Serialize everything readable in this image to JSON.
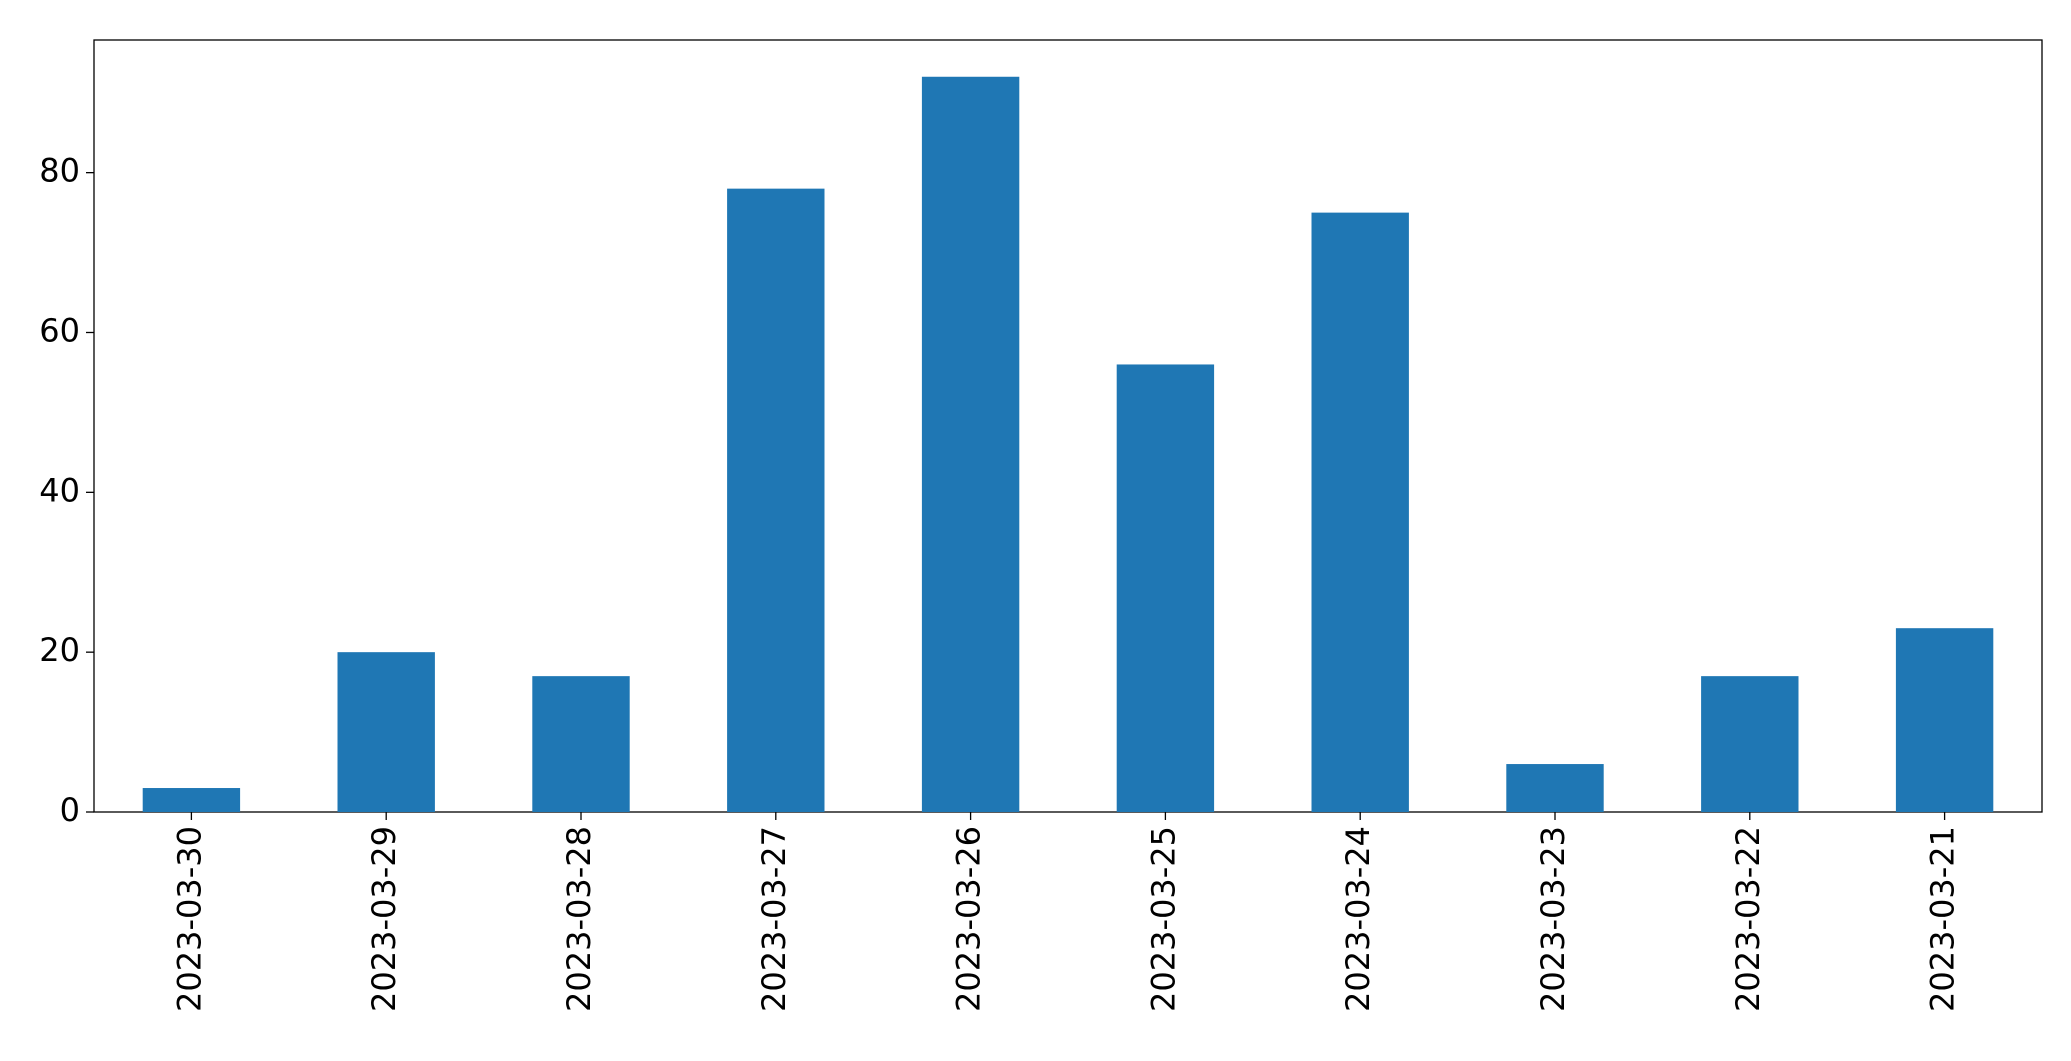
{
  "chart_data": {
    "type": "bar",
    "categories": [
      "2023-03-30",
      "2023-03-29",
      "2023-03-28",
      "2023-03-27",
      "2023-03-26",
      "2023-03-25",
      "2023-03-24",
      "2023-03-23",
      "2023-03-22",
      "2023-03-21"
    ],
    "values": [
      3,
      20,
      17,
      78,
      92,
      56,
      75,
      6,
      17,
      23
    ],
    "color": "#1f77b4",
    "ylim": [
      0,
      96.6
    ],
    "yticks": [
      0,
      20,
      40,
      60,
      80
    ],
    "grid": false
  }
}
